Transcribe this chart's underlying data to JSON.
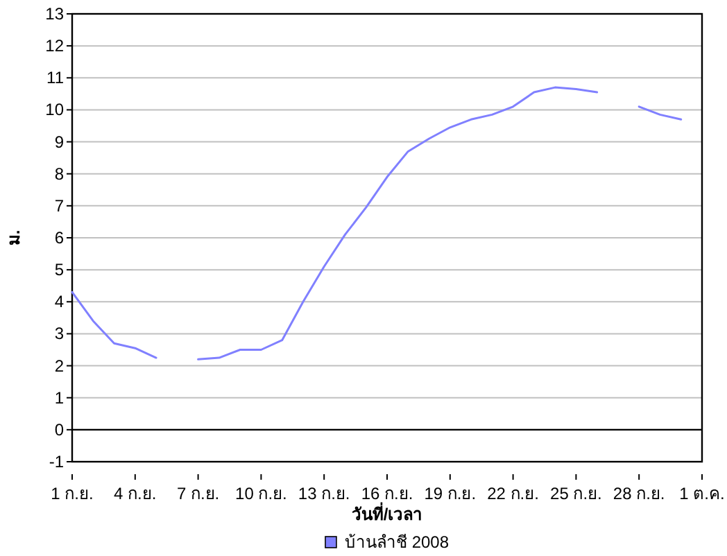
{
  "chart_data": {
    "type": "line",
    "xlabel": "วันที่/เวลา",
    "ylabel": "ม.",
    "x": [
      "2008-09-01",
      "2008-09-02",
      "2008-09-03",
      "2008-09-04",
      "2008-09-05",
      "2008-09-06",
      "2008-09-07",
      "2008-09-08",
      "2008-09-09",
      "2008-09-10",
      "2008-09-11",
      "2008-09-12",
      "2008-09-13",
      "2008-09-14",
      "2008-09-15",
      "2008-09-16",
      "2008-09-17",
      "2008-09-18",
      "2008-09-19",
      "2008-09-20",
      "2008-09-21",
      "2008-09-22",
      "2008-09-23",
      "2008-09-24",
      "2008-09-25",
      "2008-09-26",
      "2008-09-27",
      "2008-09-28",
      "2008-09-29",
      "2008-09-30"
    ],
    "series": [
      {
        "name": "บ้านลำชี 2008",
        "color": "#8080ff",
        "values": [
          4.3,
          3.4,
          2.7,
          2.55,
          2.25,
          null,
          2.2,
          2.25,
          2.5,
          2.5,
          2.8,
          4.0,
          5.1,
          6.1,
          6.95,
          7.9,
          8.7,
          9.1,
          9.45,
          9.7,
          9.85,
          10.1,
          10.55,
          10.7,
          10.65,
          10.55,
          null,
          10.1,
          9.85,
          9.7
        ]
      }
    ],
    "xlim": [
      "2008-09-01",
      "2008-10-01"
    ],
    "xticks": [
      {
        "value": "2008-09-01",
        "label": "1 ก.ย."
      },
      {
        "value": "2008-09-04",
        "label": "4 ก.ย."
      },
      {
        "value": "2008-09-07",
        "label": "7 ก.ย."
      },
      {
        "value": "2008-09-10",
        "label": "10 ก.ย."
      },
      {
        "value": "2008-09-13",
        "label": "13 ก.ย."
      },
      {
        "value": "2008-09-16",
        "label": "16 ก.ย."
      },
      {
        "value": "2008-09-19",
        "label": "19 ก.ย."
      },
      {
        "value": "2008-09-22",
        "label": "22 ก.ย."
      },
      {
        "value": "2008-09-25",
        "label": "25 ก.ย."
      },
      {
        "value": "2008-09-28",
        "label": "28 ก.ย."
      },
      {
        "value": "2008-10-01",
        "label": "1 ต.ค."
      }
    ],
    "ylim": [
      -1,
      13
    ],
    "yticks": [
      -1,
      0,
      1,
      2,
      3,
      4,
      5,
      6,
      7,
      8,
      9,
      10,
      11,
      12,
      13
    ],
    "ref_lines": [
      {
        "axis": "y",
        "value": 0,
        "color": "#000000"
      }
    ],
    "grid": "y",
    "legend": "bottom",
    "line_style": "solid",
    "marker": "none"
  }
}
